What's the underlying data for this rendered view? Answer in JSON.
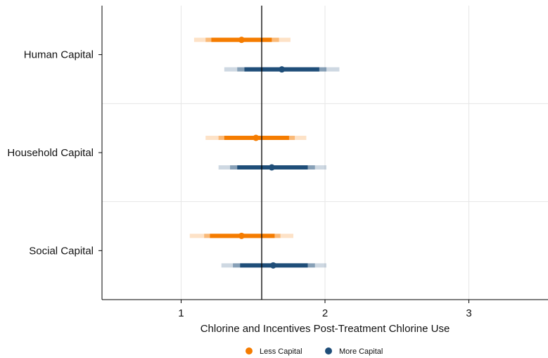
{
  "chart_data": {
    "type": "coefficient-plot",
    "xlabel": "Chlorine and Incentives Post-Treatment Chlorine Use",
    "xlim": [
      0.45,
      3.55
    ],
    "xticks": [
      1,
      2,
      3
    ],
    "reference_line": 1.56,
    "grid": true,
    "legend_position": "bottom",
    "categories": [
      "Human Capital",
      "Household Capital",
      "Social Capital"
    ],
    "series": [
      {
        "name": "Less Capital",
        "color": "#f57c00",
        "points": [
          {
            "category": "Human Capital",
            "estimate": 1.42,
            "ci90": [
              1.21,
              1.63
            ],
            "ci95": [
              1.17,
              1.68
            ],
            "ci99": [
              1.09,
              1.76
            ]
          },
          {
            "category": "Household Capital",
            "estimate": 1.52,
            "ci90": [
              1.3,
              1.75
            ],
            "ci95": [
              1.26,
              1.79
            ],
            "ci99": [
              1.17,
              1.87
            ]
          },
          {
            "category": "Social Capital",
            "estimate": 1.42,
            "ci90": [
              1.2,
              1.65
            ],
            "ci95": [
              1.16,
              1.69
            ],
            "ci99": [
              1.06,
              1.78
            ]
          }
        ]
      },
      {
        "name": "More Capital",
        "color": "#1f4e79",
        "points": [
          {
            "category": "Human Capital",
            "estimate": 1.7,
            "ci90": [
              1.44,
              1.96
            ],
            "ci95": [
              1.39,
              2.01
            ],
            "ci99": [
              1.3,
              2.1
            ]
          },
          {
            "category": "Household Capital",
            "estimate": 1.63,
            "ci90": [
              1.39,
              1.88
            ],
            "ci95": [
              1.34,
              1.93
            ],
            "ci99": [
              1.26,
              2.01
            ]
          },
          {
            "category": "Social Capital",
            "estimate": 1.64,
            "ci90": [
              1.41,
              1.88
            ],
            "ci95": [
              1.36,
              1.93
            ],
            "ci99": [
              1.28,
              2.01
            ]
          }
        ]
      }
    ]
  }
}
